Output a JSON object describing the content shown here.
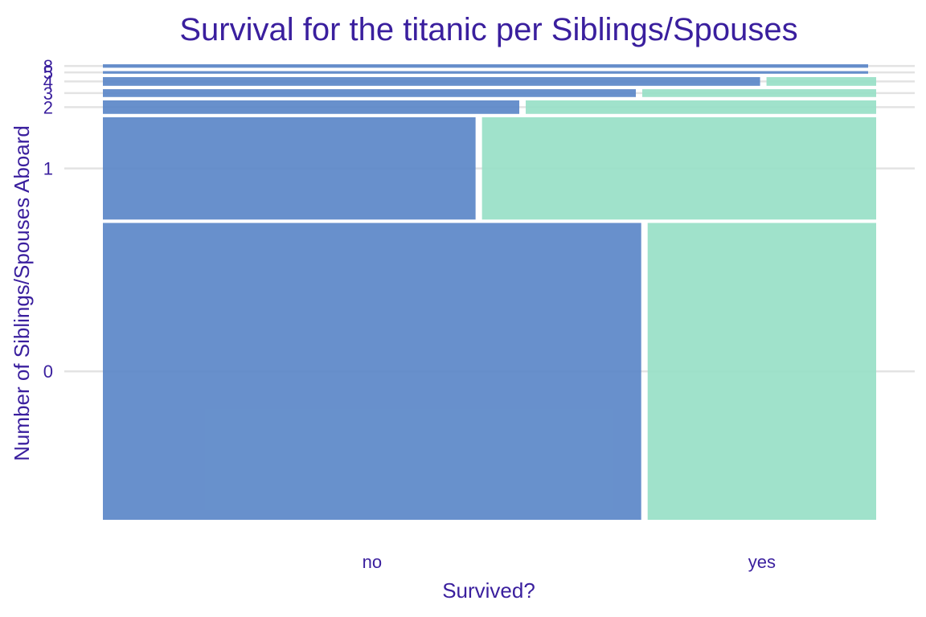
{
  "chart_data": {
    "type": "mosaic",
    "title": "Survival for the titanic per Siblings/Spouses",
    "xlabel": "Survived?",
    "ylabel": "Number of Siblings/Spouses Aboard",
    "categories": [
      "0",
      "1",
      "2",
      "3",
      "4",
      "5",
      "8"
    ],
    "survival_classes": [
      "no",
      "yes"
    ],
    "colors": {
      "no": "#5b87c8",
      "yes": "#98dfc7"
    },
    "row_shares": [
      0.682,
      0.235,
      0.031,
      0.018,
      0.02,
      0.006,
      0.008
    ],
    "survival_share_by_category": [
      {
        "sibsp": "0",
        "no": 0.702,
        "yes": 0.298
      },
      {
        "sibsp": "1",
        "no": 0.486,
        "yes": 0.514
      },
      {
        "sibsp": "2",
        "no": 0.543,
        "yes": 0.457
      },
      {
        "sibsp": "3",
        "no": 0.695,
        "yes": 0.305
      },
      {
        "sibsp": "4",
        "no": 0.857,
        "yes": 0.143
      },
      {
        "sibsp": "5",
        "no": 1.0,
        "yes": 0.0
      },
      {
        "sibsp": "8",
        "no": 1.0,
        "yes": 0.0
      }
    ],
    "x_tick_labels": [
      "no",
      "yes"
    ],
    "y_tick_labels": [
      "0",
      "1",
      "2",
      "3",
      "4",
      "5",
      "8"
    ],
    "grid": true,
    "legend": "none"
  }
}
